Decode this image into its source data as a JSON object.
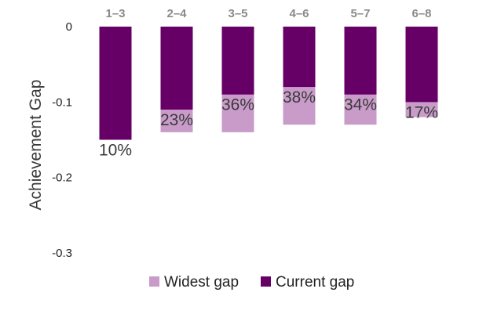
{
  "chart_data": {
    "type": "bar",
    "categories": [
      "1–3",
      "2–4",
      "3–5",
      "4–6",
      "5–7",
      "6–8"
    ],
    "series": [
      {
        "name": "Widest gap",
        "values": [
          -0.15,
          -0.14,
          -0.14,
          -0.13,
          -0.13,
          -0.12
        ],
        "color": "#c89bc9"
      },
      {
        "name": "Current gap",
        "values": [
          -0.15,
          -0.11,
          -0.09,
          -0.08,
          -0.09,
          -0.1
        ],
        "color": "#660066"
      }
    ],
    "data_labels": [
      "10%",
      "23%",
      "36%",
      "38%",
      "34%",
      "17%"
    ],
    "ylabel": "Achievement Gap",
    "ylim": [
      -0.3,
      0
    ],
    "yticks": [
      0,
      -0.1,
      -0.2,
      -0.3
    ],
    "ytick_labels": [
      "0",
      "-0.1",
      "-0.2",
      "-0.3"
    ],
    "grid": false,
    "legend_position": "bottom",
    "overlapping_bars": true
  }
}
